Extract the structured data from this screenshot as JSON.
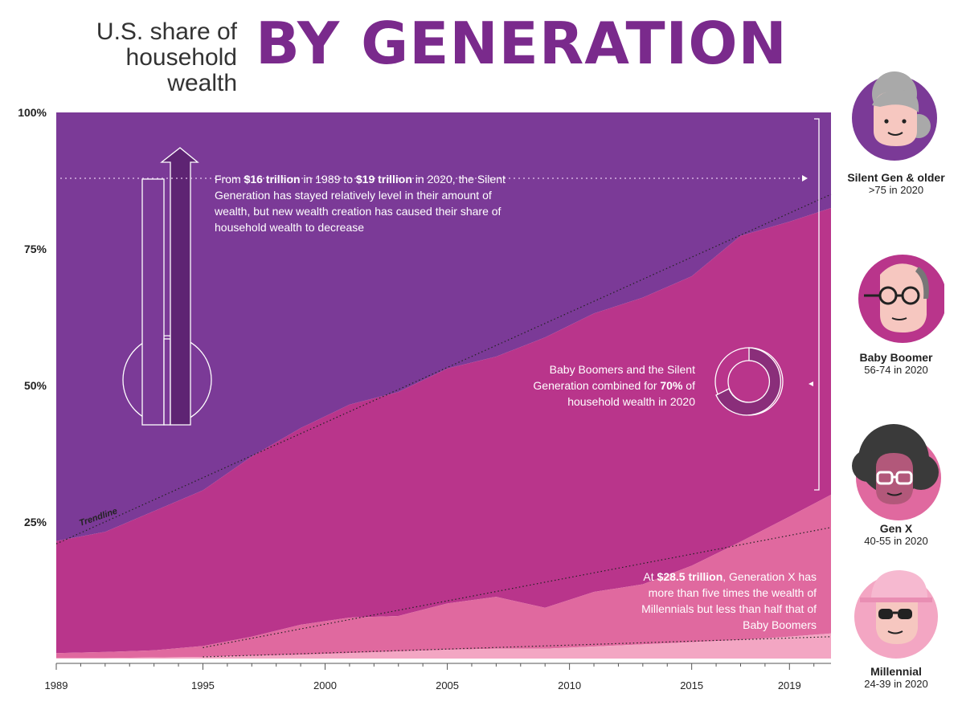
{
  "header": {
    "subtitle": "U.S. share of\nhousehold wealth",
    "title": "BY GENERATION"
  },
  "colors": {
    "silent": "#7b3a97",
    "boomer": "#b9358b",
    "genx": "#e0699f",
    "millennial": "#f3a6c3",
    "trendline": "#222222"
  },
  "annotations": {
    "silent_note": {
      "p1": "From ",
      "b1": "$16 trillion",
      "p2": " in 1989 to ",
      "b2": "$19 trillion",
      "p3": " in 2020, the Silent Generation has stayed relatively level in their amount of wealth, but new wealth creation has caused their share of household wealth to decrease"
    },
    "combined_note": {
      "p1": "Baby Boomers and the Silent Generation combined for ",
      "b1": "70%",
      "p2": " of household wealth in 2020"
    },
    "genx_note": {
      "p1": "At ",
      "b1": "$28.5 trillion",
      "p2": ", Generation X has more than five times the wealth of Millennials but less than half that of Baby Boomers"
    },
    "trendline_label": "Trendline"
  },
  "legend": [
    {
      "name": "Silent Gen & older",
      "age": ">75 in 2020",
      "icon": "silent-gen-avatar-icon"
    },
    {
      "name": "Baby Boomer",
      "age": "56-74 in 2020",
      "icon": "baby-boomer-avatar-icon"
    },
    {
      "name": "Gen X",
      "age": "40-55 in 2020",
      "icon": "gen-x-avatar-icon"
    },
    {
      "name": "Millennial",
      "age": "24-39 in 2020",
      "icon": "millennial-avatar-icon"
    }
  ],
  "chart_data": {
    "type": "area",
    "stacked": true,
    "title": "",
    "xlabel": "",
    "ylabel": "",
    "x": [
      1989,
      1991,
      1993,
      1995,
      1997,
      1999,
      2001,
      2003,
      2005,
      2007,
      2009,
      2011,
      2013,
      2015,
      2017,
      2019,
      2020
    ],
    "xlim": [
      1989,
      2020.7
    ],
    "ylim": [
      0,
      100
    ],
    "x_ticks": [
      "1989",
      "1995",
      "2000",
      "2005",
      "2010",
      "2015",
      "2019"
    ],
    "x_tick_values": [
      1989,
      1995,
      2000,
      2005,
      2010,
      2015,
      2019
    ],
    "y_ticks": [
      "100%",
      "75%",
      "50%",
      "25%"
    ],
    "y_tick_values": [
      100,
      75,
      50,
      25
    ],
    "series": [
      {
        "name": "Millennial",
        "color_key": "millennial",
        "values": [
          0.1,
          0.1,
          0.2,
          0.3,
          0.5,
          0.7,
          1.0,
          1.3,
          1.6,
          1.8,
          1.8,
          2.2,
          2.6,
          3.0,
          3.4,
          4.0,
          4.6
        ]
      },
      {
        "name": "Gen X",
        "color_key": "genx",
        "values": [
          0.9,
          1.1,
          1.3,
          2.0,
          3.5,
          5.5,
          6.5,
          6.5,
          8.5,
          9.5,
          7.5,
          10.0,
          11.0,
          14.0,
          18.0,
          22.0,
          25.4
        ]
      },
      {
        "name": "Baby Boomer",
        "color_key": "boomer",
        "values": [
          20.5,
          22.0,
          25.5,
          28.5,
          33.0,
          36.0,
          39.0,
          41.0,
          43.0,
          44.0,
          49.5,
          51.0,
          52.5,
          53.0,
          56.0,
          54.0,
          52.5
        ]
      },
      {
        "name": "Silent Gen & older",
        "color_key": "silent",
        "values": [
          78.5,
          76.8,
          73.0,
          69.2,
          63.0,
          57.8,
          53.5,
          51.2,
          46.9,
          44.7,
          41.2,
          36.8,
          33.9,
          30.0,
          22.6,
          20.0,
          17.5
        ]
      }
    ],
    "trendlines": [
      {
        "points": [
          [
            1989,
            21
          ],
          [
            2020.7,
            85
          ]
        ]
      },
      {
        "points": [
          [
            1995,
            2
          ],
          [
            2020.7,
            24
          ]
        ]
      },
      {
        "points": [
          [
            1995,
            0.3
          ],
          [
            2020.7,
            4
          ]
        ]
      }
    ],
    "grid": false,
    "legend": "right"
  }
}
